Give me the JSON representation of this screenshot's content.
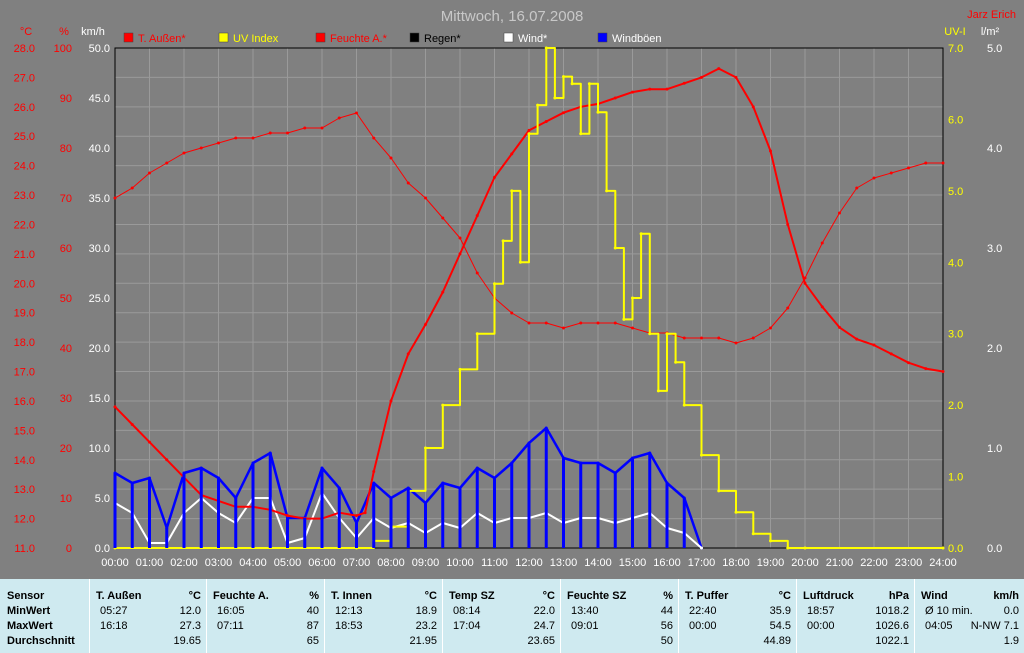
{
  "title": "Mittwoch, 16.07.2008",
  "author": "Jarz Erich",
  "colors": {
    "temp": "#ff0000",
    "uv": "#ffff00",
    "hum": "#ff0000",
    "rain": "#000000",
    "wind": "#ffffff",
    "gust": "#0000ff",
    "bg": "#808080",
    "table": "#cfeaf0"
  },
  "axis_units": {
    "temp": "°C",
    "humidity": "%",
    "wind": "km/h",
    "uv": "UV-I",
    "rain": "l/m²"
  },
  "legend": [
    "T. Außen*",
    "UV Index",
    "Feuchte A.*",
    "Regen*",
    "Wind*",
    "Windböen"
  ],
  "temp_ticks": [
    "28.0",
    "27.0",
    "26.0",
    "25.0",
    "24.0",
    "23.0",
    "22.0",
    "21.0",
    "20.0",
    "19.0",
    "18.0",
    "17.0",
    "16.0",
    "15.0",
    "14.0",
    "13.0",
    "12.0",
    "11.0"
  ],
  "hum_ticks": [
    "100",
    "90",
    "80",
    "70",
    "60",
    "50",
    "40",
    "30",
    "20",
    "10",
    "0"
  ],
  "wind_ticks": [
    "50.0",
    "45.0",
    "40.0",
    "35.0",
    "30.0",
    "25.0",
    "20.0",
    "15.0",
    "10.0",
    "5.0",
    "0.0"
  ],
  "uv_ticks": [
    "7.0",
    "6.0",
    "5.0",
    "4.0",
    "3.0",
    "2.0",
    "1.0",
    "0.0"
  ],
  "rain_ticks": [
    "5.0",
    "4.0",
    "3.0",
    "2.0",
    "1.0",
    "0.0"
  ],
  "chart_data": {
    "type": "line",
    "title": "Mittwoch, 16.07.2008",
    "x_ticks": [
      "00:00",
      "01:00",
      "02:00",
      "03:00",
      "04:00",
      "05:00",
      "06:00",
      "07:00",
      "08:00",
      "09:00",
      "10:00",
      "11:00",
      "12:00",
      "13:00",
      "14:00",
      "15:00",
      "16:00",
      "17:00",
      "18:00",
      "19:00",
      "20:00",
      "21:00",
      "22:00",
      "23:00",
      "24:00"
    ],
    "xlim": [
      0,
      24
    ],
    "grid": true,
    "legend_position": "top",
    "axes": {
      "temp": {
        "label": "°C",
        "ylim": [
          11,
          28
        ]
      },
      "humidity": {
        "label": "%",
        "ylim": [
          0,
          100
        ]
      },
      "wind": {
        "label": "km/h",
        "ylim": [
          0,
          50
        ]
      },
      "uv": {
        "label": "UV-I",
        "ylim": [
          0,
          7
        ]
      },
      "rain": {
        "label": "l/m²",
        "ylim": [
          0,
          5
        ]
      }
    },
    "series": [
      {
        "name": "T. Außen*",
        "axis": "temp",
        "color": "#ff0000",
        "x": [
          0,
          0.5,
          1,
          1.5,
          2,
          2.5,
          3,
          3.5,
          4,
          4.5,
          5,
          5.5,
          6,
          6.5,
          7,
          7.25,
          7.5,
          8,
          8.5,
          9,
          9.5,
          10,
          10.5,
          11,
          11.5,
          12,
          12.5,
          13,
          13.5,
          14,
          14.5,
          15,
          15.5,
          16,
          16.5,
          17,
          17.5,
          18,
          18.5,
          19,
          19.5,
          20,
          20.5,
          21,
          21.5,
          22,
          22.5,
          23,
          23.5,
          24
        ],
        "y": [
          15.8,
          15.2,
          14.6,
          14.0,
          13.4,
          12.8,
          12.6,
          12.4,
          12.4,
          12.3,
          12.1,
          12.0,
          12.0,
          12.2,
          12.1,
          12.2,
          13.6,
          16.0,
          17.6,
          18.6,
          19.7,
          21.0,
          22.3,
          23.6,
          24.4,
          25.2,
          25.5,
          25.8,
          26.0,
          26.1,
          26.3,
          26.5,
          26.6,
          26.6,
          26.8,
          27.0,
          27.3,
          27.0,
          26.0,
          24.5,
          22.0,
          20.0,
          19.2,
          18.5,
          18.1,
          17.9,
          17.6,
          17.3,
          17.1,
          17.0
        ]
      },
      {
        "name": "UV Index",
        "axis": "uv",
        "color": "#ffff00",
        "x": [
          0,
          7,
          7.5,
          8,
          8.5,
          9,
          9.5,
          10,
          10.5,
          11,
          11.25,
          11.5,
          11.75,
          12,
          12.25,
          12.5,
          12.75,
          13,
          13.25,
          13.5,
          13.75,
          14,
          14.25,
          14.5,
          14.75,
          15,
          15.25,
          15.5,
          15.75,
          16,
          16.25,
          16.5,
          17,
          17.5,
          18,
          18.5,
          19,
          19.5,
          20,
          24
        ],
        "y": [
          0,
          0,
          0.1,
          0.3,
          0.8,
          1.4,
          2.0,
          2.5,
          3.0,
          3.7,
          4.3,
          5.0,
          4.0,
          5.8,
          6.2,
          7.0,
          6.3,
          6.6,
          6.5,
          5.8,
          6.5,
          6.1,
          5.0,
          4.2,
          3.2,
          3.5,
          4.4,
          3.0,
          2.2,
          3.0,
          2.6,
          2.0,
          1.3,
          0.8,
          0.5,
          0.2,
          0.1,
          0,
          0,
          0
        ]
      },
      {
        "name": "Feuchte A.*",
        "axis": "humidity",
        "color": "#ff0000",
        "x": [
          0,
          0.5,
          1,
          1.5,
          2,
          2.5,
          3,
          3.5,
          4,
          4.5,
          5,
          5.5,
          6,
          6.5,
          7,
          7.5,
          8,
          8.5,
          9,
          9.5,
          10,
          10.5,
          11,
          11.5,
          12,
          12.5,
          13,
          13.5,
          14,
          14.5,
          15,
          15.5,
          16,
          16.5,
          17,
          17.5,
          18,
          18.5,
          19,
          19.5,
          20,
          20.5,
          21,
          21.5,
          22,
          22.5,
          23,
          23.5,
          24
        ],
        "y": [
          70,
          72,
          75,
          77,
          79,
          80,
          81,
          82,
          82,
          83,
          83,
          84,
          84,
          86,
          87,
          82,
          78,
          73,
          70,
          66,
          62,
          55,
          50,
          47,
          45,
          45,
          44,
          45,
          45,
          45,
          44,
          43,
          43,
          42,
          42,
          42,
          41,
          42,
          44,
          48,
          54,
          61,
          67,
          72,
          74,
          75,
          76,
          77,
          77
        ]
      },
      {
        "name": "Wind*",
        "axis": "wind",
        "color": "#ffffff",
        "x": [
          0,
          0.5,
          1,
          1.5,
          2,
          2.5,
          3,
          3.5,
          4,
          4.5,
          5,
          5.5,
          6,
          6.5,
          7,
          7.5,
          8,
          8.5,
          9,
          9.5,
          10,
          10.5,
          11,
          11.5,
          12,
          12.5,
          13,
          13.5,
          14,
          14.5,
          15,
          15.5,
          16,
          16.5,
          17
        ],
        "y": [
          4.5,
          3.5,
          0.5,
          0.5,
          3.5,
          5.0,
          3.5,
          2.5,
          5.0,
          5.0,
          0.5,
          1.0,
          5.5,
          3.0,
          1.0,
          3.0,
          2.0,
          2.5,
          1.5,
          2.5,
          2.0,
          3.5,
          2.5,
          3.0,
          3.0,
          3.5,
          2.5,
          3.0,
          3.0,
          2.5,
          3.0,
          3.5,
          2.0,
          1.5,
          0
        ]
      },
      {
        "name": "Windböen",
        "axis": "wind",
        "color": "#0000ff",
        "x": [
          0,
          0.5,
          1,
          1.5,
          2,
          2.5,
          3,
          3.5,
          4,
          4.5,
          5,
          5.5,
          6,
          6.5,
          7,
          7.5,
          8,
          8.5,
          9,
          9.5,
          10,
          10.5,
          11,
          11.5,
          12,
          12.5,
          13,
          13.5,
          14,
          14.5,
          15,
          15.5,
          16,
          16.5,
          17
        ],
        "y": [
          7.5,
          6.5,
          7.0,
          2.0,
          7.5,
          8.0,
          7.0,
          5.0,
          8.5,
          9.5,
          3.0,
          3.0,
          8.0,
          6.0,
          2.5,
          6.5,
          5.0,
          6.0,
          4.5,
          6.5,
          6.0,
          8.0,
          7.0,
          8.5,
          10.5,
          12.0,
          9.0,
          8.5,
          8.5,
          7.5,
          9.0,
          9.5,
          6.5,
          5.0,
          0
        ]
      }
    ]
  },
  "table": {
    "row_labels": [
      "Sensor",
      "MinWert",
      "MaxWert",
      "Durchschnitt"
    ],
    "columns": [
      {
        "name": "T. Außen",
        "unit": "°C",
        "min": [
          "05:27",
          "12.0"
        ],
        "max": [
          "16:18",
          "27.3"
        ],
        "avg": "19.65"
      },
      {
        "name": "Feuchte A.",
        "unit": "%",
        "min": [
          "16:05",
          "40"
        ],
        "max": [
          "07:11",
          "87"
        ],
        "avg": "65"
      },
      {
        "name": "T. Innen",
        "unit": "°C",
        "min": [
          "12:13",
          "18.9"
        ],
        "max": [
          "18:53",
          "23.2"
        ],
        "avg": "21.95"
      },
      {
        "name": "Temp SZ",
        "unit": "°C",
        "min": [
          "08:14",
          "22.0"
        ],
        "max": [
          "17:04",
          "24.7"
        ],
        "avg": "23.65"
      },
      {
        "name": "Feuchte SZ",
        "unit": "%",
        "min": [
          "13:40",
          "44"
        ],
        "max": [
          "09:01",
          "56"
        ],
        "avg": "50"
      },
      {
        "name": "T. Puffer",
        "unit": "°C",
        "min": [
          "22:40",
          "35.9"
        ],
        "max": [
          "00:00",
          "54.5"
        ],
        "avg": "44.89"
      },
      {
        "name": "Luftdruck",
        "unit": "hPa",
        "min": [
          "18:57",
          "1018.2"
        ],
        "max": [
          "00:00",
          "1026.6"
        ],
        "avg": "1022.1"
      },
      {
        "name": "Wind",
        "unit": "km/h",
        "min": [
          "Ø 10 min.",
          "0.0"
        ],
        "max": [
          "04:05",
          "N-NW 7.1"
        ],
        "avg": "1.9"
      }
    ]
  }
}
